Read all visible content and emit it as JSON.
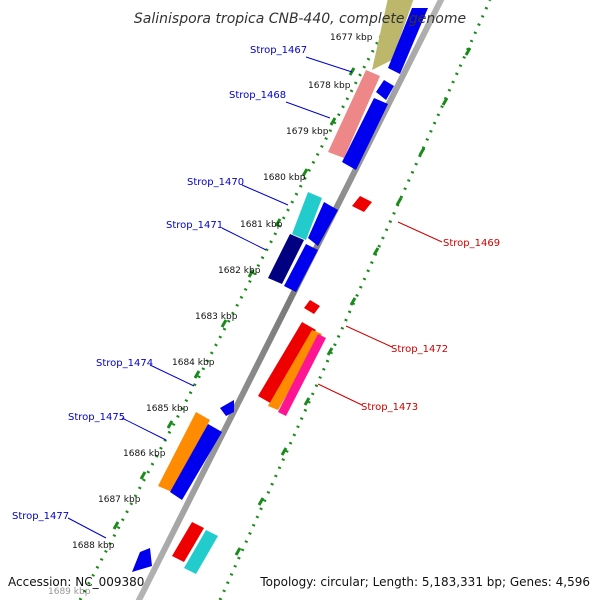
{
  "title": "Salinispora tropica CNB-440, complete genome",
  "accession": "Accession: NC_009380",
  "summary": "Topology: circular; Length: 5,183,331 bp; Genes: 4,596",
  "colors": {
    "left_label": "#0000cc",
    "right_label": "#cc0000",
    "backbone": "#8c8c8c",
    "ticks": "#1a8a1a"
  },
  "kbp_labels": [
    "1677 kbp",
    "1678 kbp",
    "1679 kbp",
    "1680 kbp",
    "1681 kbp",
    "1682 kbp",
    "1683 kbp",
    "1684 kbp",
    "1685 kbp",
    "1686 kbp",
    "1687 kbp",
    "1688 kbp",
    "1689 kbp"
  ],
  "gene_labels_left": [
    "Strop_1467",
    "Strop_1468",
    "Strop_1470",
    "Strop_1471",
    "Strop_1474",
    "Strop_1475",
    "Strop_1477"
  ],
  "gene_labels_right": [
    "Strop_1469",
    "Strop_1472",
    "Strop_1473"
  ]
}
